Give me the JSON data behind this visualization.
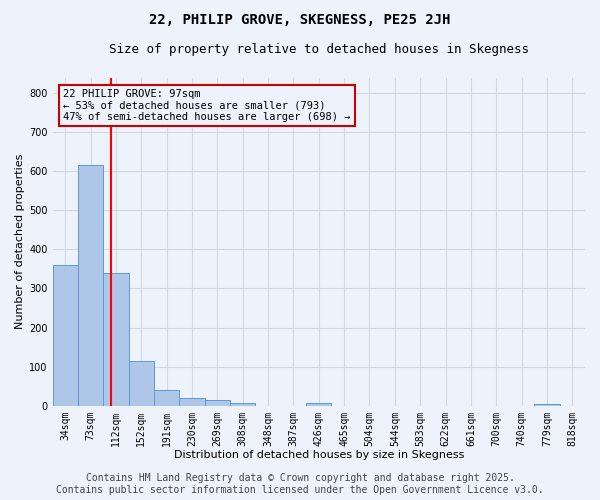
{
  "title": "22, PHILIP GROVE, SKEGNESS, PE25 2JH",
  "subtitle": "Size of property relative to detached houses in Skegness",
  "xlabel": "Distribution of detached houses by size in Skegness",
  "ylabel": "Number of detached properties",
  "bar_labels": [
    "34sqm",
    "73sqm",
    "112sqm",
    "152sqm",
    "191sqm",
    "230sqm",
    "269sqm",
    "308sqm",
    "348sqm",
    "387sqm",
    "426sqm",
    "465sqm",
    "504sqm",
    "544sqm",
    "583sqm",
    "622sqm",
    "661sqm",
    "700sqm",
    "740sqm",
    "779sqm",
    "818sqm"
  ],
  "bar_values": [
    360,
    615,
    340,
    115,
    40,
    20,
    15,
    8,
    0,
    0,
    8,
    0,
    0,
    0,
    0,
    0,
    0,
    0,
    0,
    5,
    0
  ],
  "bar_color": "#aec6e8",
  "bar_edge_color": "#5b9bd5",
  "grid_color": "#d0d8e8",
  "background_color": "#eef2fb",
  "red_line_x": 1.82,
  "annotation_text": "22 PHILIP GROVE: 97sqm\n← 53% of detached houses are smaller (793)\n47% of semi-detached houses are larger (698) →",
  "annotation_box_color": "#cc0000",
  "ylim": [
    0,
    840
  ],
  "yticks": [
    0,
    100,
    200,
    300,
    400,
    500,
    600,
    700,
    800
  ],
  "footer_line1": "Contains HM Land Registry data © Crown copyright and database right 2025.",
  "footer_line2": "Contains public sector information licensed under the Open Government Licence v3.0.",
  "title_fontsize": 10,
  "subtitle_fontsize": 9,
  "axis_fontsize": 8,
  "tick_fontsize": 7,
  "footer_fontsize": 7
}
